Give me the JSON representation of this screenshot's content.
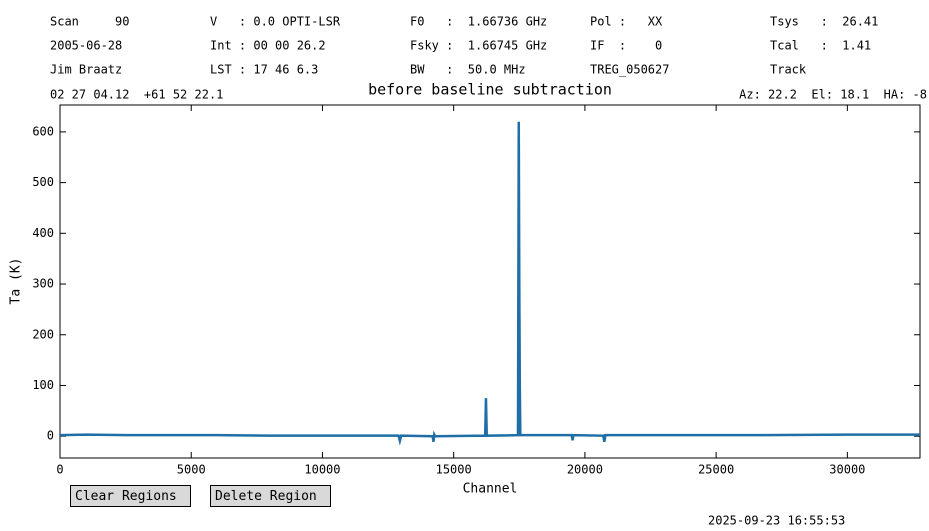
{
  "header": {
    "rows": [
      [
        "Scan     90",
        "V   : 0.0 OPTI-LSR",
        "F0   :  1.66736 GHz",
        "Pol :   XX",
        "Tsys   :  26.41"
      ],
      [
        "2005-06-28",
        "Int : 00 00 26.2",
        "Fsky :  1.66745 GHz",
        "IF  :    0",
        "Tcal   :  1.41"
      ],
      [
        "Jim Braatz",
        "LST : 17 46 6.3",
        "BW   :  50.0 MHz",
        "TREG_050627",
        "Track"
      ]
    ],
    "position": "02 27 04.12  +61 52 22.1",
    "pointing": "Az: 22.2  El: 18.1  HA: -8"
  },
  "chart_data": {
    "type": "line",
    "title": "before baseline subtraction",
    "x_label": "Channel",
    "y_label": "Ta (K)",
    "x": [
      0,
      1000,
      3000,
      6000,
      8000,
      10000,
      12900,
      12950,
      13000,
      14200,
      14230,
      14260,
      14290,
      16200,
      16230,
      16260,
      17450,
      17480,
      17500,
      17520,
      17540,
      19500,
      19530,
      19560,
      20700,
      20740,
      20780,
      23000,
      26000,
      30000,
      32768
    ],
    "values": [
      2,
      3,
      2,
      2,
      1,
      1,
      1,
      -9,
      1,
      0,
      -11,
      3,
      0,
      1,
      75,
      1,
      2,
      620,
      300,
      100,
      2,
      2,
      -8,
      2,
      1,
      -11,
      2,
      2,
      2,
      3,
      3
    ],
    "color": "#1f6fa6",
    "xlim": [
      0,
      32768
    ],
    "ylim": [
      -43,
      653
    ],
    "xticks": [
      0,
      5000,
      10000,
      15000,
      20000,
      25000,
      30000
    ],
    "yticks": [
      0,
      100,
      200,
      300,
      400,
      500,
      600
    ]
  },
  "buttons": [
    "Clear Regions",
    "Delete Region"
  ],
  "timestamp": "2025-09-23 16:55:53"
}
